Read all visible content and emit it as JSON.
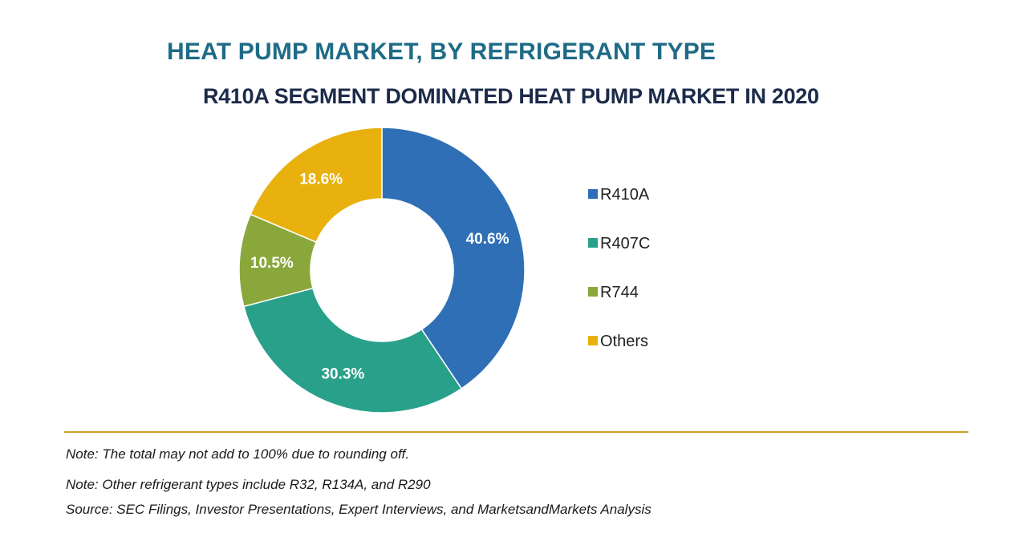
{
  "header": {
    "title": "HEAT PUMP MARKET, BY REFRIGERANT TYPE",
    "subtitle": "R410A SEGMENT DOMINATED HEAT PUMP MARKET IN 2020"
  },
  "chart_data": {
    "type": "pie",
    "donut": true,
    "title": "HEAT PUMP MARKET, BY REFRIGERANT TYPE",
    "subtitle": "R410A SEGMENT DOMINATED HEAT PUMP MARKET IN 2020",
    "categories": [
      "R410A",
      "R407C",
      "R744",
      "Others"
    ],
    "values": [
      40.6,
      30.3,
      10.5,
      18.6
    ],
    "value_labels": [
      "40.6%",
      "30.3%",
      "10.5%",
      "18.6%"
    ],
    "colors": [
      "#2e6fb5",
      "#29a08a",
      "#8aa73c",
      "#e8b10d"
    ],
    "legend_position": "right",
    "unit": "%"
  },
  "footer": {
    "note1": "Note: The total may not add to 100% due to rounding off.",
    "note2": "Note: Other refrigerant types include R32, R134A, and R290",
    "source": "Source: SEC Filings, Investor Presentations, Expert Interviews, and MarketsandMarkets Analysis"
  }
}
